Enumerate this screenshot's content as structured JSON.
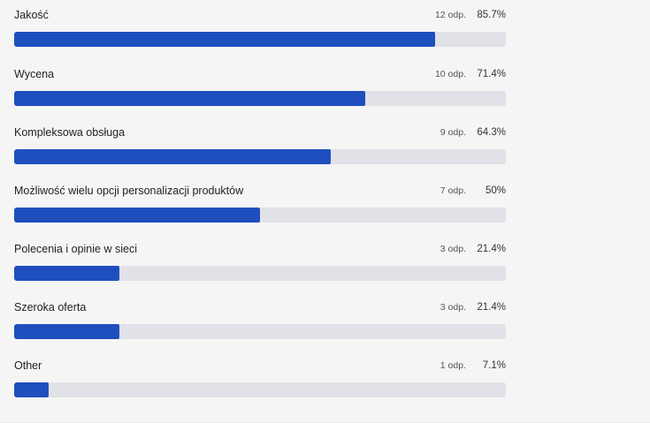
{
  "poll": {
    "options": [
      {
        "label": "Jakość",
        "count": "12 odp.",
        "percent_text": "85.7%",
        "percent": 85.7
      },
      {
        "label": "Wycena",
        "count": "10 odp.",
        "percent_text": "71.4%",
        "percent": 71.4
      },
      {
        "label": "Kompleksowa obsługa",
        "count": "9 odp.",
        "percent_text": "64.3%",
        "percent": 64.3
      },
      {
        "label": "Możliwość wielu opcji personalizacji produktów",
        "count": "7 odp.",
        "percent_text": "50%",
        "percent": 50
      },
      {
        "label": "Polecenia i opinie w sieci",
        "count": "3 odp.",
        "percent_text": "21.4%",
        "percent": 21.4
      },
      {
        "label": "Szeroka oferta",
        "count": "3 odp.",
        "percent_text": "21.4%",
        "percent": 21.4
      },
      {
        "label": "Other",
        "count": "1 odp.",
        "percent_text": "7.1%",
        "percent": 7.1
      }
    ]
  },
  "colors": {
    "bar_fill": "#1f4fbf",
    "bar_track": "#e1e1e8",
    "background": "#f5f5f5"
  }
}
